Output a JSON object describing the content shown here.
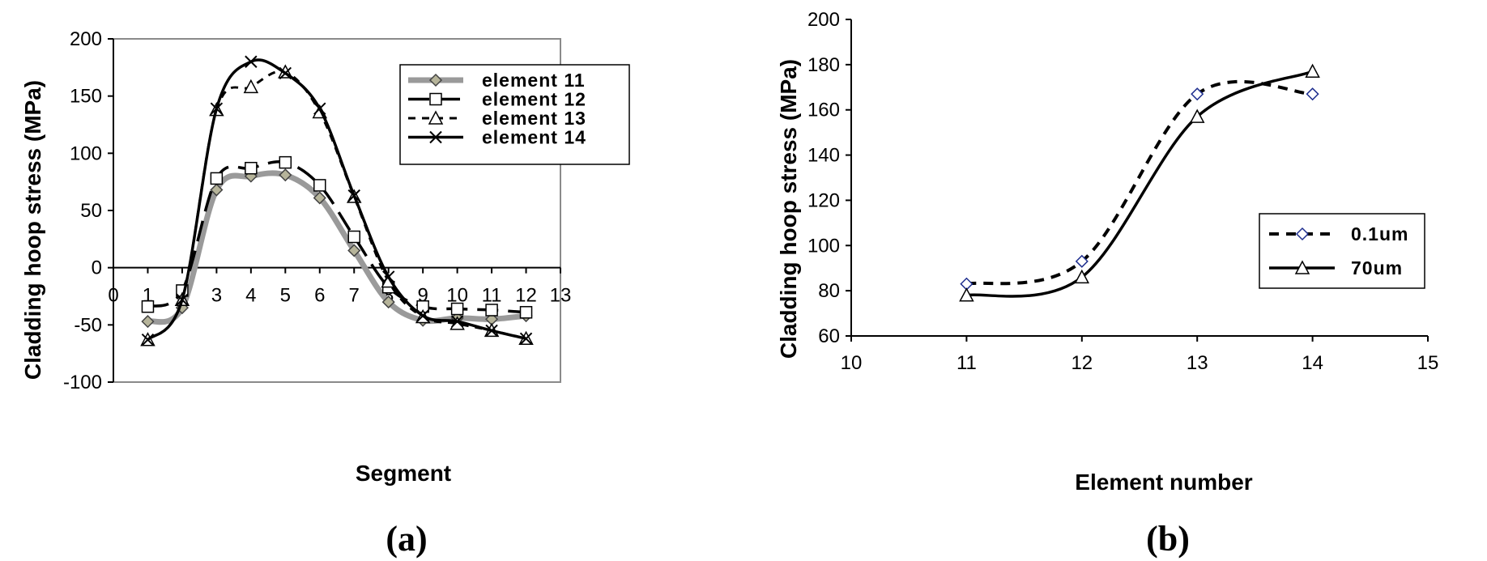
{
  "chart_data": [
    {
      "type": "line",
      "panel_label": "(a)",
      "xlabel": "Segment",
      "ylabel": "Cladding hoop stress (MPa)",
      "xlim": [
        0,
        13
      ],
      "ylim": [
        -100,
        200
      ],
      "x_ticks": [
        "0",
        "1",
        "2",
        "3",
        "4",
        "5",
        "6",
        "7",
        "8",
        "9",
        "10",
        "11",
        "12",
        "13"
      ],
      "y_ticks": [
        "-100",
        "-50",
        "0",
        "50",
        "100",
        "150",
        "200"
      ],
      "legend_position": "top-right",
      "series": [
        {
          "name": "element 11",
          "marker": "diamond",
          "style": "gray-thick",
          "x": [
            1,
            2,
            3,
            4,
            5,
            6,
            7,
            8,
            9,
            10,
            11,
            12
          ],
          "y": [
            -47,
            -35,
            68,
            80,
            81,
            61,
            15,
            -30,
            -46,
            -44,
            -45,
            -42
          ]
        },
        {
          "name": "element 12",
          "marker": "square",
          "style": "long-dash",
          "x": [
            1,
            2,
            3,
            4,
            5,
            6,
            7,
            8,
            9,
            10,
            11,
            12
          ],
          "y": [
            -34,
            -20,
            78,
            87,
            92,
            72,
            27,
            -17,
            -34,
            -36,
            -37,
            -39
          ]
        },
        {
          "name": "element 13",
          "marker": "triangle",
          "style": "short-dash",
          "x": [
            1,
            2,
            3,
            4,
            5,
            6,
            7,
            8,
            9,
            10,
            11,
            12
          ],
          "y": [
            -63,
            -28,
            138,
            158,
            171,
            136,
            62,
            -12,
            -43,
            -49,
            -55,
            -62
          ]
        },
        {
          "name": "element 14",
          "marker": "x",
          "style": "solid",
          "x": [
            1,
            2,
            3,
            4,
            5,
            6,
            7,
            8,
            9,
            10,
            11,
            12
          ],
          "y": [
            -63,
            -28,
            139,
            180,
            170,
            139,
            63,
            -8,
            -42,
            -47,
            -55,
            -62
          ]
        }
      ]
    },
    {
      "type": "line",
      "panel_label": "(b)",
      "xlabel": "Element number",
      "ylabel": "Cladding hoop stress (MPa)",
      "xlim": [
        10,
        15
      ],
      "ylim": [
        60,
        200
      ],
      "x_ticks": [
        "10",
        "11",
        "12",
        "13",
        "14",
        "15"
      ],
      "y_ticks": [
        "60",
        "80",
        "100",
        "120",
        "140",
        "160",
        "180",
        "200"
      ],
      "legend_position": "right",
      "series": [
        {
          "name": "0.1um",
          "marker": "diamond",
          "style": "dash",
          "color": "#1f2f8f",
          "x": [
            11,
            12,
            13,
            14
          ],
          "y": [
            83,
            93,
            167,
            167
          ]
        },
        {
          "name": "70um",
          "marker": "triangle",
          "style": "solid",
          "x": [
            11,
            12,
            13,
            14
          ],
          "y": [
            78,
            86,
            157,
            177
          ]
        }
      ]
    }
  ]
}
